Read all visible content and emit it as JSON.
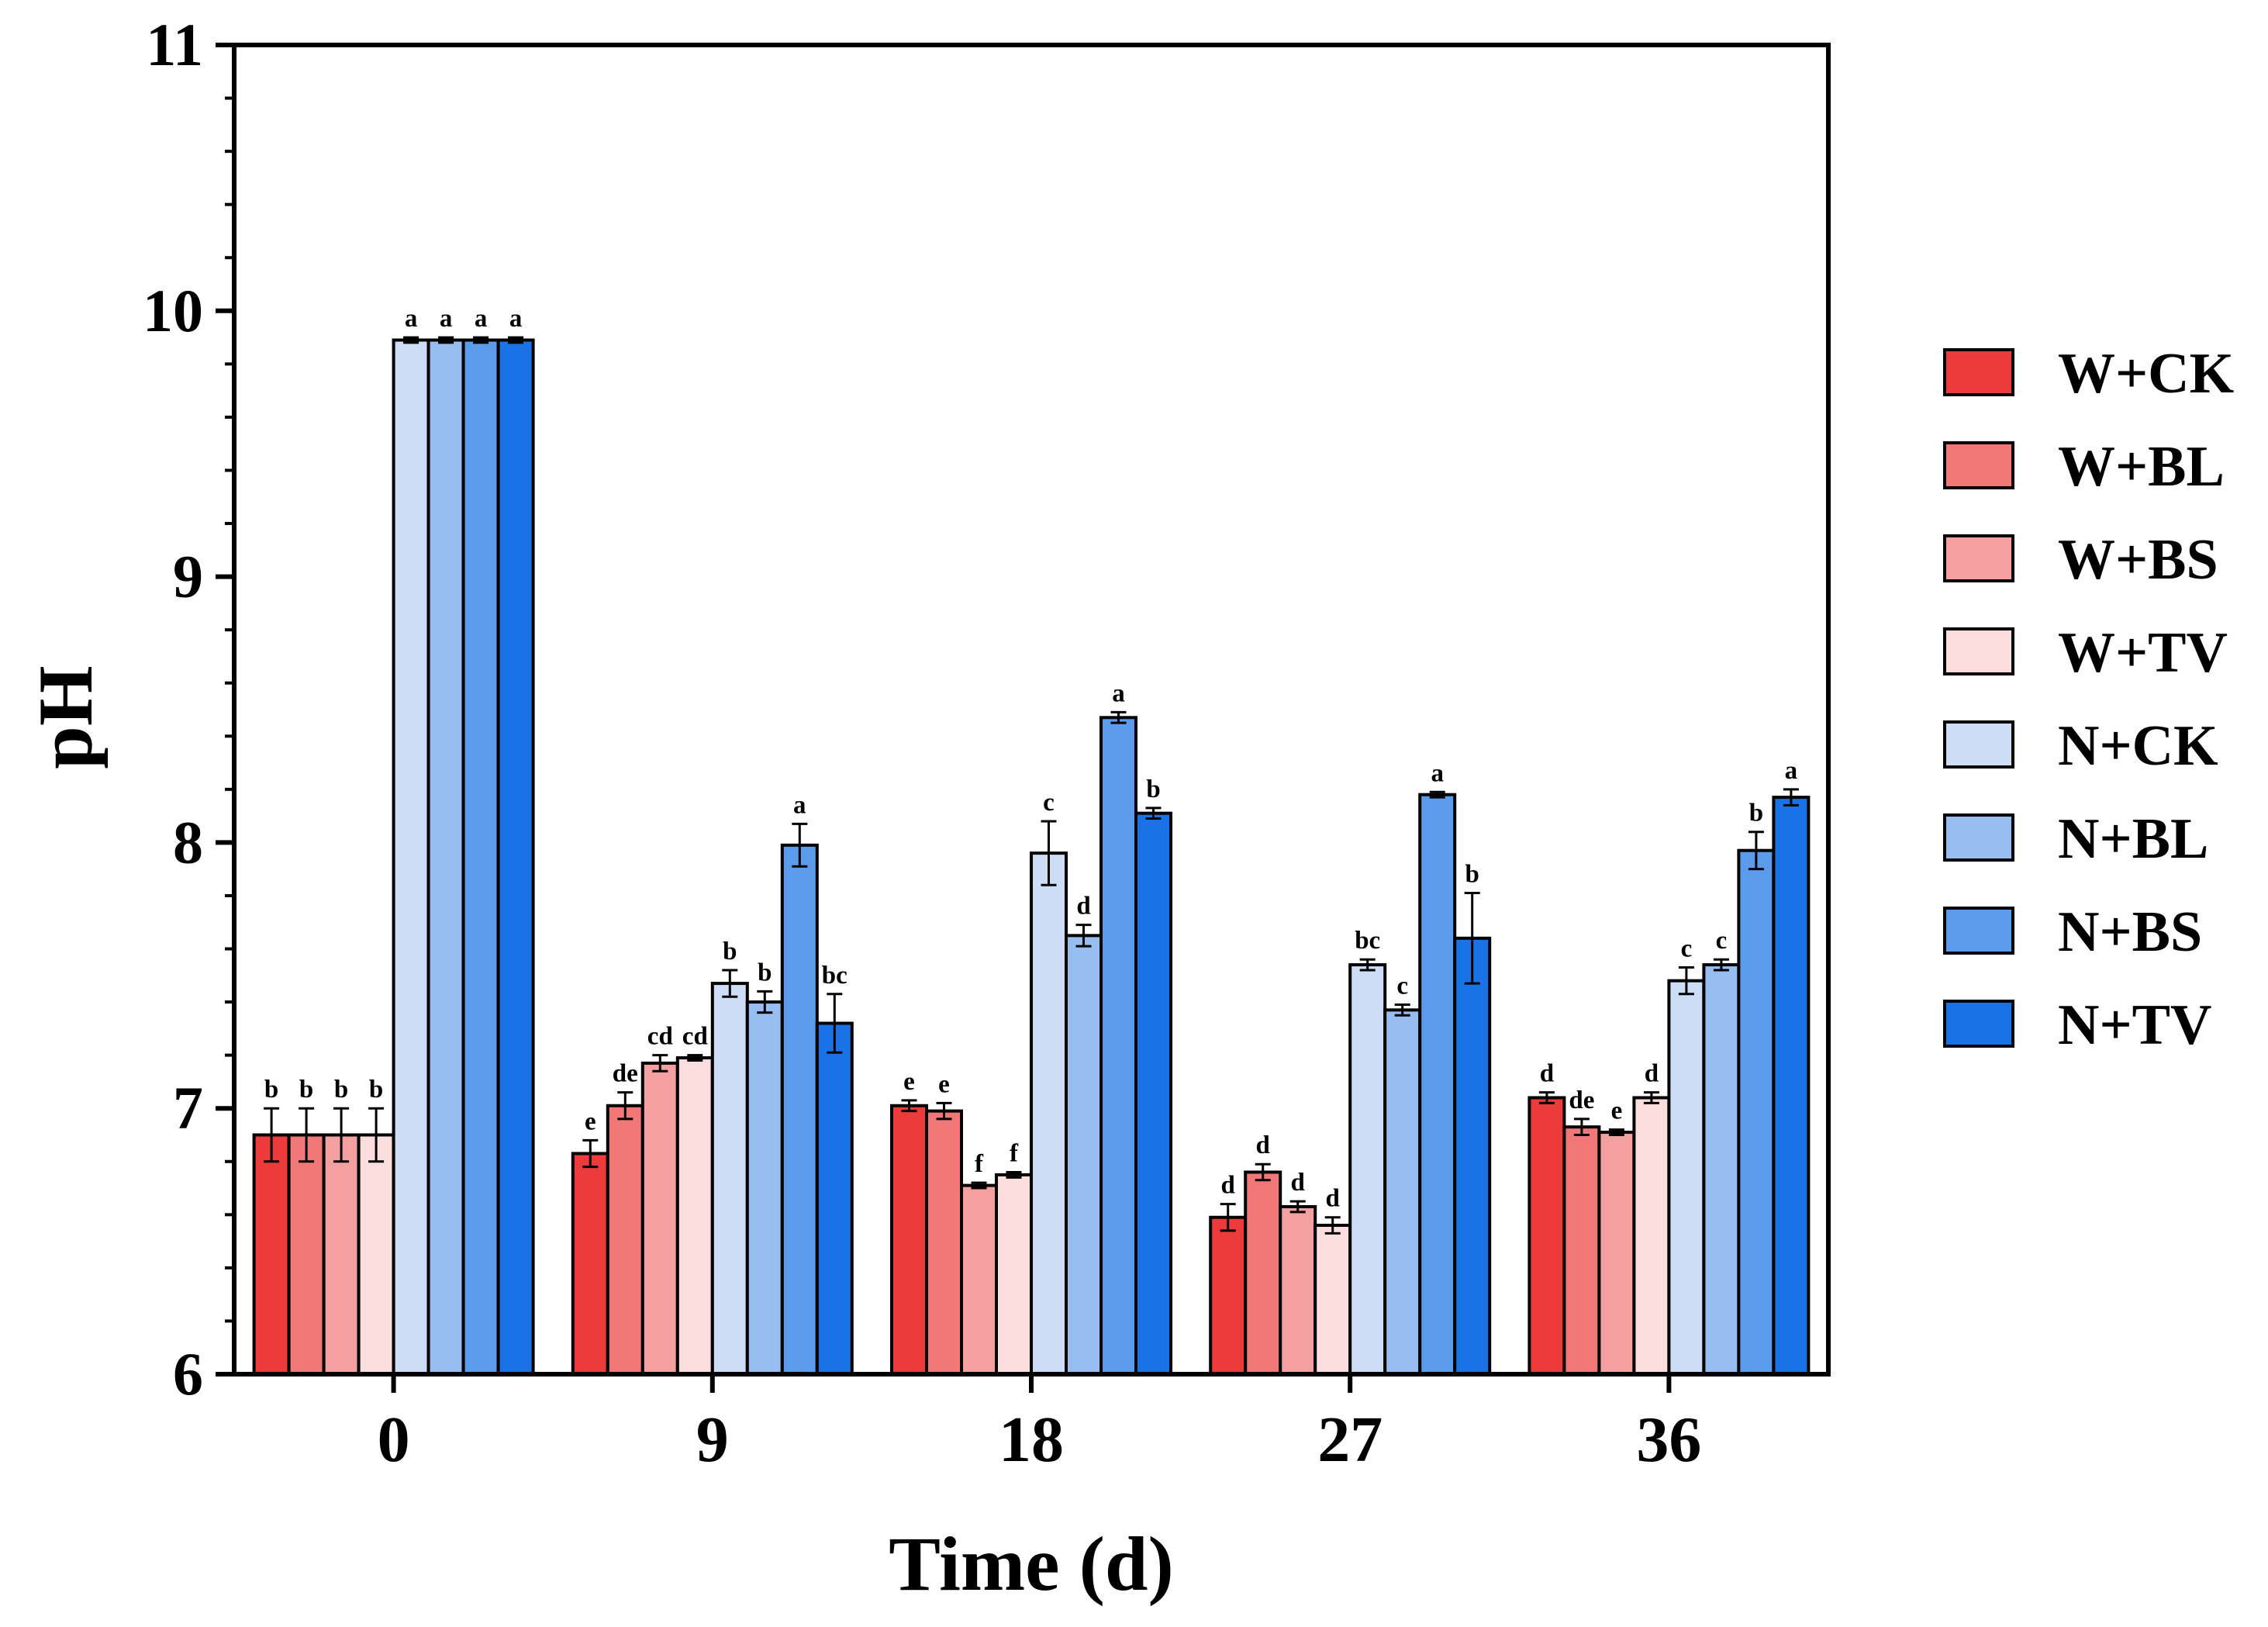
{
  "chart_data": {
    "type": "bar",
    "title": "",
    "xlabel": "Time (d)",
    "ylabel": "pH",
    "ylim": [
      6,
      11
    ],
    "yticks": [
      "6",
      "7",
      "8",
      "9",
      "10",
      "11"
    ],
    "categories": [
      "0",
      "9",
      "18",
      "27",
      "36"
    ],
    "grid": false,
    "legend_position": "right",
    "error_bars": true,
    "series": [
      {
        "name": "W+CK",
        "color": "#ED3A3A",
        "values": [
          6.9,
          6.83,
          7.01,
          6.59,
          7.04
        ],
        "errors": [
          0.1,
          0.05,
          0.02,
          0.05,
          0.02
        ],
        "letters": [
          "b",
          "e",
          "e",
          "d",
          "d"
        ]
      },
      {
        "name": "W+BL",
        "color": "#F27878",
        "values": [
          6.9,
          7.01,
          6.99,
          6.76,
          6.93
        ],
        "errors": [
          0.1,
          0.05,
          0.03,
          0.03,
          0.03
        ],
        "letters": [
          "b",
          "de",
          "e",
          "d",
          "de"
        ]
      },
      {
        "name": "W+BS",
        "color": "#F5A0A0",
        "values": [
          6.9,
          7.17,
          6.71,
          6.63,
          6.91
        ],
        "errors": [
          0.1,
          0.03,
          0.01,
          0.02,
          0.01
        ],
        "letters": [
          "b",
          "cd",
          "f",
          "d",
          "e"
        ]
      },
      {
        "name": "W+TV",
        "color": "#FCDDDD",
        "values": [
          6.9,
          7.19,
          6.75,
          6.56,
          7.04
        ],
        "errors": [
          0.1,
          0.01,
          0.01,
          0.03,
          0.02
        ],
        "letters": [
          "b",
          "cd",
          "f",
          "d",
          "d"
        ]
      },
      {
        "name": "N+CK",
        "color": "#CCDDF5",
        "values": [
          9.89,
          7.47,
          7.96,
          7.54,
          7.48
        ],
        "errors": [
          0.01,
          0.05,
          0.12,
          0.02,
          0.05
        ],
        "letters": [
          "a",
          "b",
          "c",
          "bc",
          "c"
        ]
      },
      {
        "name": "N+BL",
        "color": "#96BEF0",
        "values": [
          9.89,
          7.4,
          7.65,
          7.37,
          7.54
        ],
        "errors": [
          0.01,
          0.04,
          0.04,
          0.02,
          0.02
        ],
        "letters": [
          "a",
          "b",
          "d",
          "c",
          "c"
        ]
      },
      {
        "name": "N+BS",
        "color": "#5A9BEB",
        "values": [
          9.89,
          7.99,
          8.47,
          8.18,
          7.97
        ],
        "errors": [
          0.01,
          0.08,
          0.02,
          0.01,
          0.07
        ],
        "letters": [
          "a",
          "a",
          "a",
          "a",
          "b"
        ]
      },
      {
        "name": "N+TV",
        "color": "#1A73E6",
        "values": [
          9.89,
          7.32,
          8.11,
          7.64,
          8.17
        ],
        "errors": [
          0.01,
          0.11,
          0.02,
          0.17,
          0.03
        ],
        "letters": [
          "a",
          "bc",
          "b",
          "b",
          "a"
        ]
      }
    ]
  }
}
